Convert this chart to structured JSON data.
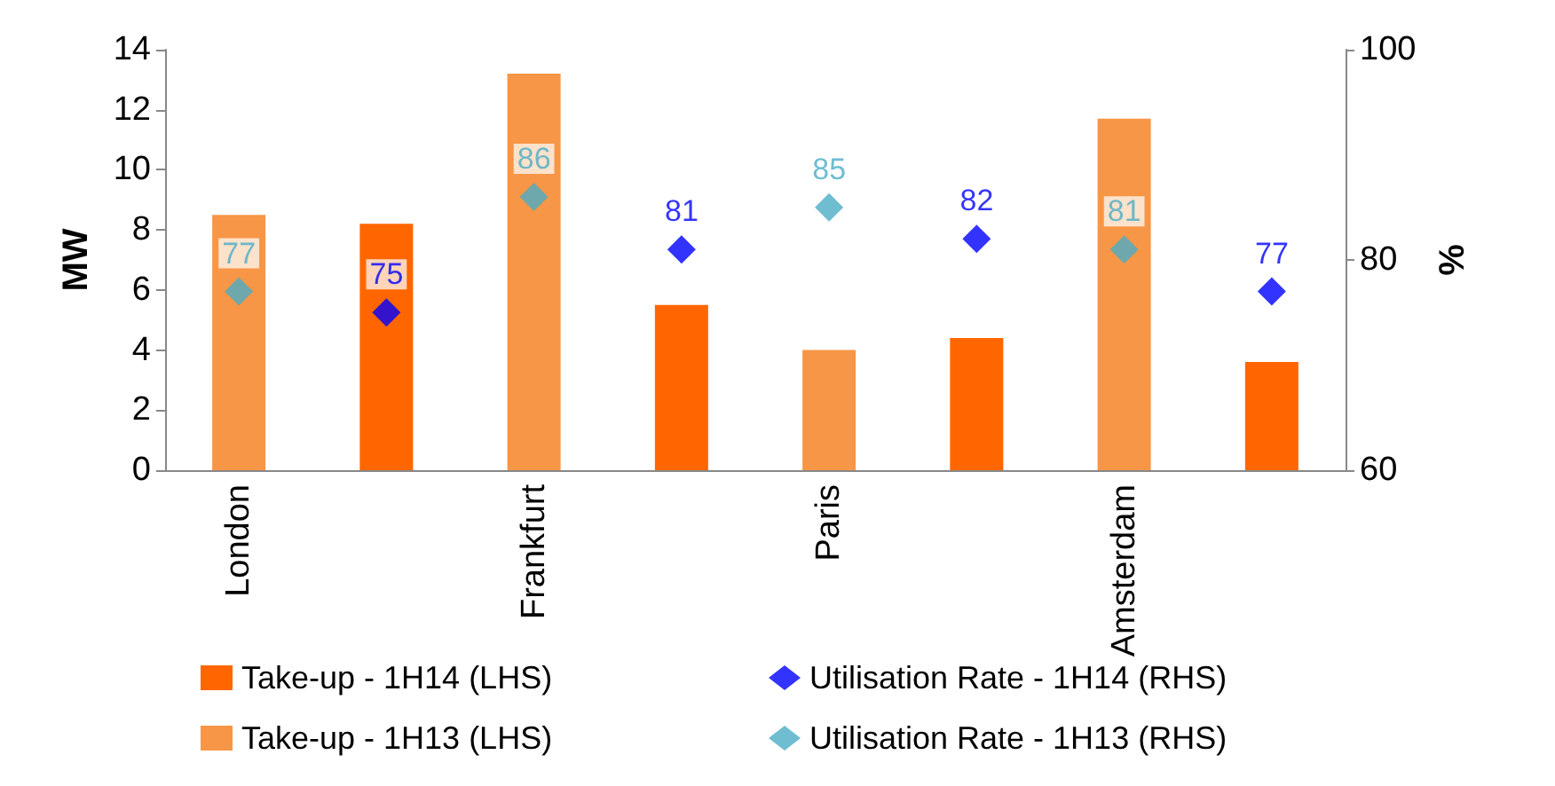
{
  "chart_data": {
    "type": "bar",
    "categories": [
      "London",
      null,
      "Frankfurt",
      null,
      "Paris",
      null,
      "Amsterdam",
      null
    ],
    "series": [
      {
        "name": "Take-up - 1H14 (LHS)",
        "color": "#ff6600",
        "values": [
          null,
          8.2,
          null,
          5.5,
          null,
          4.4,
          null,
          3.6
        ]
      },
      {
        "name": "Utilisation Rate - 1H14 (RHS)",
        "type": "scatter",
        "axis": "y2",
        "color": "#0000ff",
        "values": [
          null,
          75,
          null,
          81,
          null,
          82,
          null,
          77
        ],
        "value_labels": [
          null,
          "75",
          null,
          "81",
          null,
          "82",
          null,
          "77"
        ]
      },
      {
        "name": "Take-up - 1H13 (LHS)",
        "color": "#f79646",
        "values": [
          8.5,
          null,
          13.2,
          null,
          4.0,
          null,
          11.7,
          null
        ]
      },
      {
        "name": "Utilisation Rate - 1H13 (RHS)",
        "type": "scatter",
        "axis": "y2",
        "color": "#4bacc6",
        "values": [
          77,
          null,
          86,
          null,
          85,
          null,
          81,
          null
        ],
        "value_labels": [
          "77",
          null,
          "86",
          null,
          "85",
          null,
          "81",
          null
        ]
      }
    ],
    "ylabel": "MW",
    "y2label": "%",
    "ylim": [
      0,
      14
    ],
    "yticks": [
      0,
      2,
      4,
      6,
      8,
      10,
      12,
      14
    ],
    "y2lim": [
      60,
      100
    ],
    "y2ticks": [
      60,
      80,
      100
    ],
    "grid": false,
    "legend": "bottom",
    "marker": "diamond"
  }
}
